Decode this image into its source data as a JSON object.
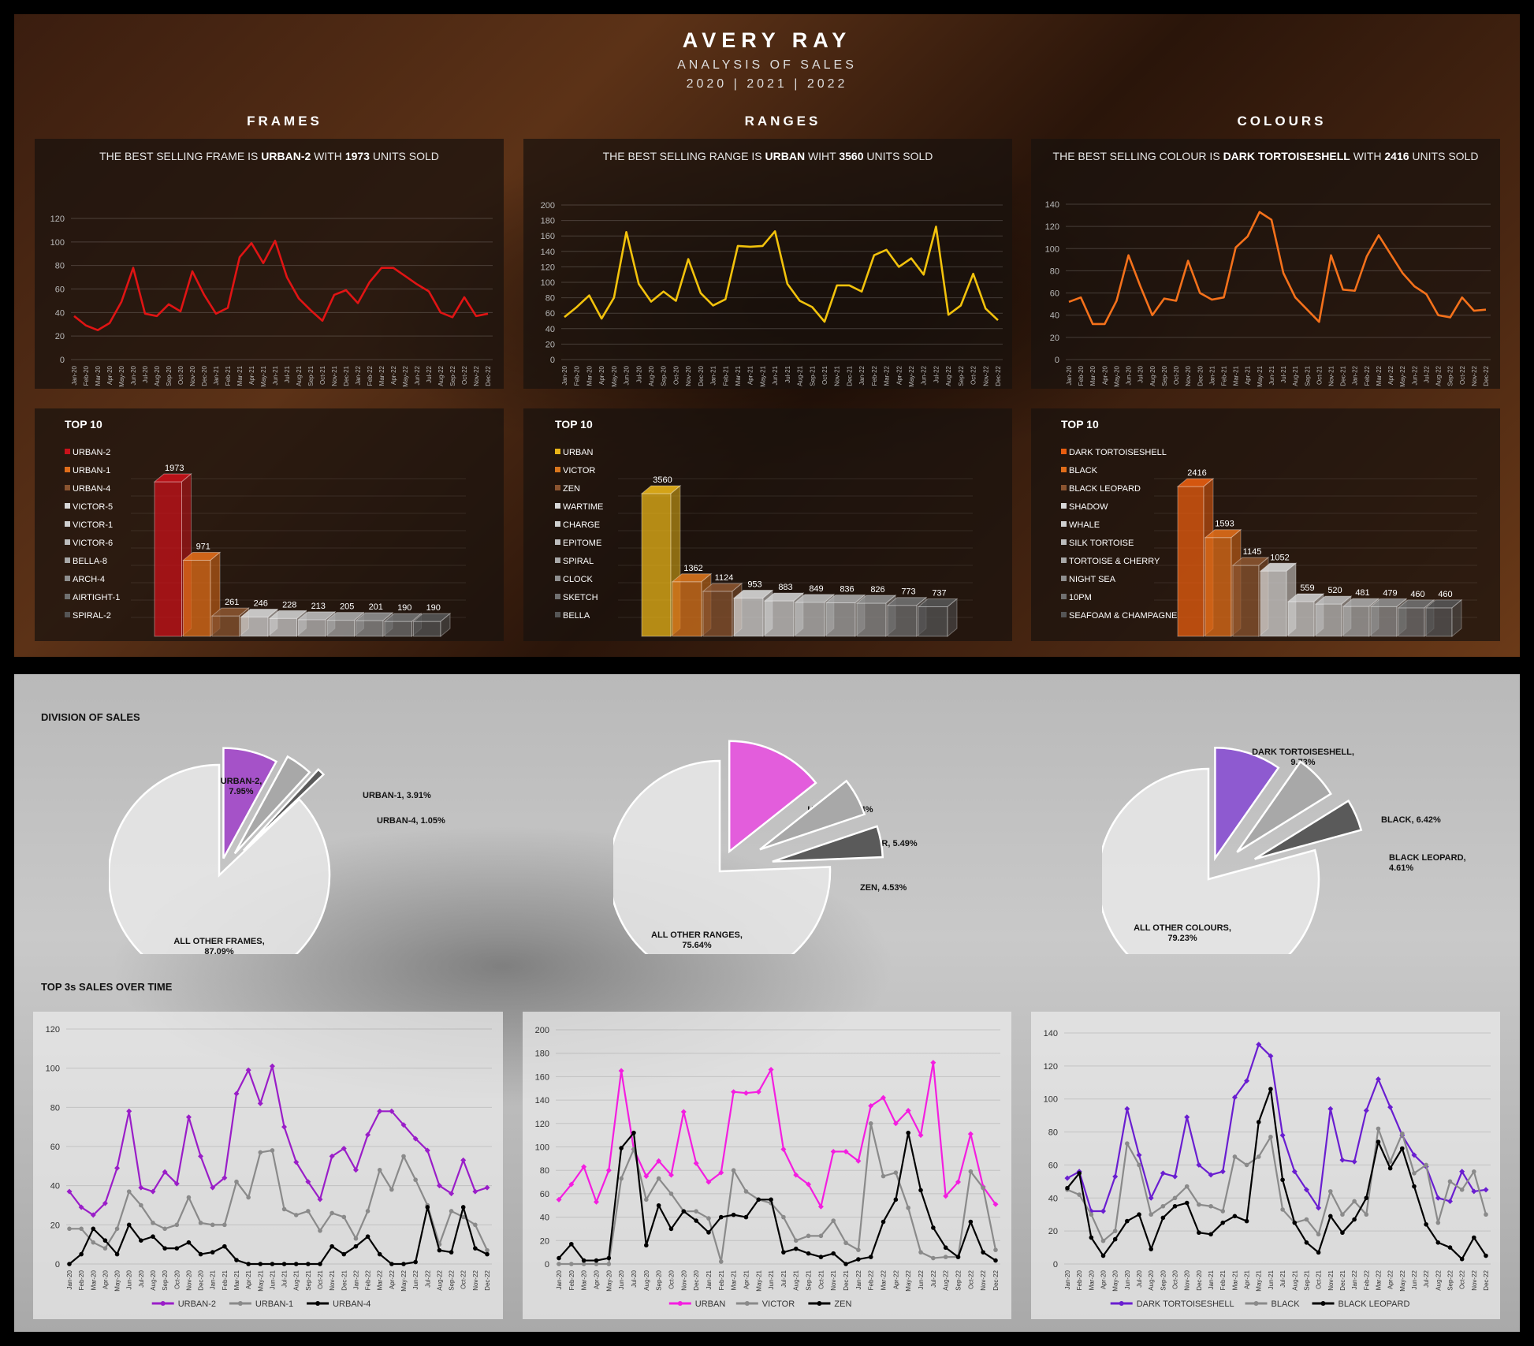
{
  "header": {
    "brand": "AVERY RAY",
    "subtitle": "ANALYSIS OF SALES",
    "years": "2020 | 2021 | 2022"
  },
  "sections": {
    "frames": "FRAMES",
    "ranges": "RANGES",
    "colours": "COLOURS"
  },
  "months": [
    "Jan-20",
    "Feb-20",
    "Mar-20",
    "Apr-20",
    "May-20",
    "Jun-20",
    "Jul-20",
    "Aug-20",
    "Sep-20",
    "Oct-20",
    "Nov-20",
    "Dec-20",
    "Jan-21",
    "Feb-21",
    "Mar-21",
    "Apr-21",
    "May-21",
    "Jun-21",
    "Jul-21",
    "Aug-21",
    "Sep-21",
    "Oct-21",
    "Nov-21",
    "Dec-21",
    "Jan-22",
    "Feb-22",
    "Mar-22",
    "Apr-22",
    "May-22",
    "Jun-22",
    "Jul-22",
    "Aug-22",
    "Sep-22",
    "Oct-22",
    "Nov-22",
    "Dec-22"
  ],
  "panels": {
    "frames": {
      "pre": "THE BEST SELLING FRAME IS ",
      "name": "URBAN-2",
      "mid": " WITH ",
      "units": "1973",
      "post": " UNITS SOLD"
    },
    "ranges": {
      "pre": "THE BEST SELLING RANGE IS ",
      "name": "URBAN",
      "mid": " WIHT ",
      "units": "3560",
      "post": " UNITS SOLD"
    },
    "colours": {
      "pre": "THE BEST SELLING COLOUR IS ",
      "name": "DARK TORTOISESHELL",
      "mid": " WITH ",
      "units": "2416",
      "post": " UNITS SOLD"
    }
  },
  "top10_label": "TOP 10",
  "division_label": "DIVISION OF SALES",
  "top3_label": "TOP 3s SALES OVER TIME",
  "chart_data": [
    {
      "id": "frames_line",
      "type": "line",
      "ylim": [
        0,
        120
      ],
      "yticks": [
        0,
        20,
        40,
        60,
        80,
        100,
        120
      ],
      "color": "#e01414",
      "series": [
        {
          "values": [
            37,
            29,
            25,
            31,
            49,
            78,
            39,
            37,
            47,
            41,
            75,
            55,
            39,
            44,
            87,
            99,
            82,
            101,
            70,
            52,
            42,
            33,
            55,
            59,
            48,
            66,
            78,
            78,
            71,
            64,
            58,
            40,
            36,
            53,
            37,
            39
          ]
        }
      ]
    },
    {
      "id": "ranges_line",
      "type": "line",
      "ylim": [
        0,
        200
      ],
      "yticks": [
        0,
        20,
        40,
        60,
        80,
        100,
        120,
        140,
        160,
        180,
        200
      ],
      "color": "#f2c20c",
      "series": [
        {
          "values": [
            55,
            68,
            83,
            53,
            80,
            165,
            98,
            75,
            88,
            76,
            130,
            86,
            70,
            78,
            147,
            146,
            147,
            166,
            98,
            76,
            68,
            49,
            96,
            96,
            88,
            135,
            142,
            120,
            131,
            110,
            172,
            58,
            70,
            111,
            66,
            51
          ]
        }
      ]
    },
    {
      "id": "colours_line",
      "type": "line",
      "ylim": [
        0,
        140
      ],
      "yticks": [
        0,
        20,
        40,
        60,
        80,
        100,
        120,
        140
      ],
      "color": "#f5711b",
      "series": [
        {
          "values": [
            52,
            56,
            32,
            32,
            53,
            94,
            66,
            40,
            55,
            53,
            89,
            60,
            54,
            56,
            101,
            111,
            133,
            126,
            78,
            56,
            45,
            34,
            94,
            63,
            62,
            93,
            112,
            95,
            78,
            66,
            59,
            40,
            38,
            56,
            44,
            45
          ]
        }
      ]
    },
    {
      "id": "frames_top10",
      "type": "bar",
      "color": "#c8121a",
      "categories": [
        "URBAN-2",
        "URBAN-1",
        "URBAN-4",
        "VICTOR-5",
        "VICTOR-1",
        "VICTOR-6",
        "BELLA-8",
        "ARCH-4",
        "AIRTIGHT-1",
        "SPIRAL-2"
      ],
      "values": [
        1973,
        971,
        261,
        246,
        228,
        213,
        205,
        201,
        190,
        190
      ],
      "barcolors": [
        "#c8121a",
        "#e06d1a",
        "#8a5430",
        "#d8d8d8",
        "#cfcfcf",
        "#bdbdbd",
        "#a8a8a8",
        "#8f8f8f",
        "#707070",
        "#555555"
      ]
    },
    {
      "id": "ranges_top10",
      "type": "bar",
      "categories": [
        "URBAN",
        "VICTOR",
        "ZEN",
        "WARTIME",
        "CHARGE",
        "EPITOME",
        "SPIRAL",
        "CLOCK",
        "SKETCH",
        "BELLA"
      ],
      "values": [
        3560,
        1362,
        1124,
        953,
        883,
        849,
        836,
        826,
        773,
        737
      ],
      "barcolors": [
        "#e8b418",
        "#d9761d",
        "#8a5430",
        "#d8d8d8",
        "#cfcfcf",
        "#bdbdbd",
        "#a8a8a8",
        "#8f8f8f",
        "#707070",
        "#555555"
      ]
    },
    {
      "id": "colours_top10",
      "type": "bar",
      "categories": [
        "DARK TORTOISESHELL",
        "BLACK",
        "BLACK LEOPARD",
        "SHADOW",
        "WHALE",
        "SILK TORTOISE",
        "TORTOISE & CHERRY",
        "NIGHT SEA",
        "10PM",
        "SEAFOAM & CHAMPAGNE"
      ],
      "values": [
        2416,
        1593,
        1145,
        1052,
        559,
        520,
        481,
        479,
        460,
        460
      ],
      "barcolors": [
        "#e85d10",
        "#e06d1a",
        "#8a5430",
        "#d8d8d8",
        "#cfcfcf",
        "#bdbdbd",
        "#a8a8a8",
        "#8f8f8f",
        "#707070",
        "#555555"
      ]
    },
    {
      "id": "frames_pie",
      "type": "pie",
      "slices": [
        {
          "label": "URBAN-2, 7.95%",
          "value": 7.95,
          "color": "#a552c8"
        },
        {
          "label": "URBAN-1, 3.91%",
          "value": 3.91,
          "color": "#a8a8a8"
        },
        {
          "label": "URBAN-4, 1.05%",
          "value": 1.05,
          "color": "#5a5a5a"
        },
        {
          "label": "ALL OTHER FRAMES, 87.09%",
          "value": 87.09,
          "color": "#e8e8e8"
        }
      ]
    },
    {
      "id": "ranges_pie",
      "type": "pie",
      "slices": [
        {
          "label": "URBAN, 14.34%",
          "value": 14.34,
          "color": "#e35ddc"
        },
        {
          "label": "VICTOR, 5.49%",
          "value": 5.49,
          "color": "#a8a8a8"
        },
        {
          "label": "ZEN, 4.53%",
          "value": 4.53,
          "color": "#5a5a5a"
        },
        {
          "label": "ALL OTHER RANGES, 75.64%",
          "value": 75.64,
          "color": "#e8e8e8"
        }
      ]
    },
    {
      "id": "colours_pie",
      "type": "pie",
      "slices": [
        {
          "label": "DARK TORTOISESHELL, 9.73%",
          "value": 9.73,
          "color": "#8e5ad0"
        },
        {
          "label": "BLACK, 6.42%",
          "value": 6.42,
          "color": "#a8a8a8"
        },
        {
          "label": "BLACK LEOPARD, 4.61%",
          "value": 4.61,
          "color": "#5a5a5a"
        },
        {
          "label": "ALL OTHER COLOURS, 79.23%",
          "value": 79.23,
          "color": "#e8e8e8"
        }
      ]
    },
    {
      "id": "frames_top3",
      "type": "line",
      "ylim": [
        0,
        120
      ],
      "yticks": [
        0,
        20,
        40,
        60,
        80,
        100,
        120
      ],
      "series": [
        {
          "name": "URBAN-2",
          "color": "#9a1ec8",
          "values": [
            37,
            29,
            25,
            31,
            49,
            78,
            39,
            37,
            47,
            41,
            75,
            55,
            39,
            44,
            87,
            99,
            82,
            101,
            70,
            52,
            42,
            33,
            55,
            59,
            48,
            66,
            78,
            78,
            71,
            64,
            58,
            40,
            36,
            53,
            37,
            39
          ]
        },
        {
          "name": "URBAN-1",
          "color": "#8a8a8a",
          "values": [
            18,
            18,
            11,
            8,
            18,
            37,
            30,
            21,
            18,
            20,
            34,
            21,
            20,
            20,
            42,
            34,
            57,
            58,
            28,
            25,
            27,
            17,
            26,
            24,
            13,
            27,
            48,
            38,
            55,
            43,
            30,
            10,
            27,
            24,
            20,
            7
          ]
        },
        {
          "name": "URBAN-4",
          "color": "#000000",
          "values": [
            0,
            5,
            18,
            12,
            5,
            20,
            12,
            14,
            8,
            8,
            11,
            5,
            6,
            9,
            2,
            0,
            0,
            0,
            0,
            0,
            0,
            0,
            9,
            5,
            9,
            14,
            5,
            0,
            0,
            1,
            29,
            7,
            6,
            29,
            8,
            5
          ]
        }
      ]
    },
    {
      "id": "ranges_top3",
      "type": "line",
      "ylim": [
        0,
        200
      ],
      "yticks": [
        0,
        20,
        40,
        60,
        80,
        100,
        120,
        140,
        160,
        180,
        200
      ],
      "series": [
        {
          "name": "URBAN",
          "color": "#f41ee0",
          "values": [
            55,
            68,
            83,
            53,
            80,
            165,
            98,
            75,
            88,
            76,
            130,
            86,
            70,
            78,
            147,
            146,
            147,
            166,
            98,
            76,
            68,
            49,
            96,
            96,
            88,
            135,
            142,
            120,
            131,
            110,
            172,
            58,
            70,
            111,
            66,
            51
          ]
        },
        {
          "name": "VICTOR",
          "color": "#8a8a8a",
          "values": [
            0,
            0,
            0,
            0,
            0,
            73,
            98,
            55,
            73,
            60,
            45,
            45,
            39,
            2,
            80,
            62,
            55,
            52,
            40,
            20,
            24,
            24,
            37,
            18,
            12,
            120,
            75,
            78,
            48,
            10,
            5,
            6,
            6,
            79,
            65,
            12
          ]
        },
        {
          "name": "ZEN",
          "color": "#000000",
          "values": [
            5,
            17,
            3,
            3,
            5,
            99,
            112,
            16,
            50,
            30,
            45,
            37,
            27,
            40,
            42,
            40,
            55,
            55,
            10,
            13,
            9,
            6,
            9,
            0,
            4,
            6,
            36,
            55,
            112,
            63,
            31,
            14,
            6,
            36,
            10,
            3
          ]
        }
      ]
    },
    {
      "id": "colours_top3",
      "type": "line",
      "ylim": [
        0,
        140
      ],
      "yticks": [
        0,
        20,
        40,
        60,
        80,
        100,
        120,
        140
      ],
      "series": [
        {
          "name": "DARK TORTOISESHELL",
          "color": "#6a1ed0",
          "values": [
            52,
            56,
            32,
            32,
            53,
            94,
            66,
            40,
            55,
            53,
            89,
            60,
            54,
            56,
            101,
            111,
            133,
            126,
            78,
            56,
            45,
            34,
            94,
            63,
            62,
            93,
            112,
            95,
            78,
            66,
            59,
            40,
            38,
            56,
            44,
            45
          ]
        },
        {
          "name": "BLACK",
          "color": "#8a8a8a",
          "values": [
            45,
            42,
            30,
            14,
            20,
            73,
            60,
            30,
            35,
            40,
            47,
            36,
            35,
            32,
            65,
            60,
            65,
            77,
            33,
            25,
            27,
            18,
            44,
            30,
            38,
            30,
            82,
            62,
            79,
            55,
            60,
            25,
            50,
            45,
            56,
            30
          ]
        },
        {
          "name": "BLACK LEOPARD",
          "color": "#000000",
          "values": [
            46,
            55,
            16,
            5,
            15,
            26,
            30,
            9,
            28,
            35,
            37,
            19,
            18,
            25,
            29,
            26,
            86,
            106,
            51,
            25,
            13,
            7,
            29,
            19,
            27,
            40,
            74,
            58,
            70,
            47,
            24,
            13,
            10,
            3,
            16,
            5
          ]
        }
      ]
    }
  ]
}
